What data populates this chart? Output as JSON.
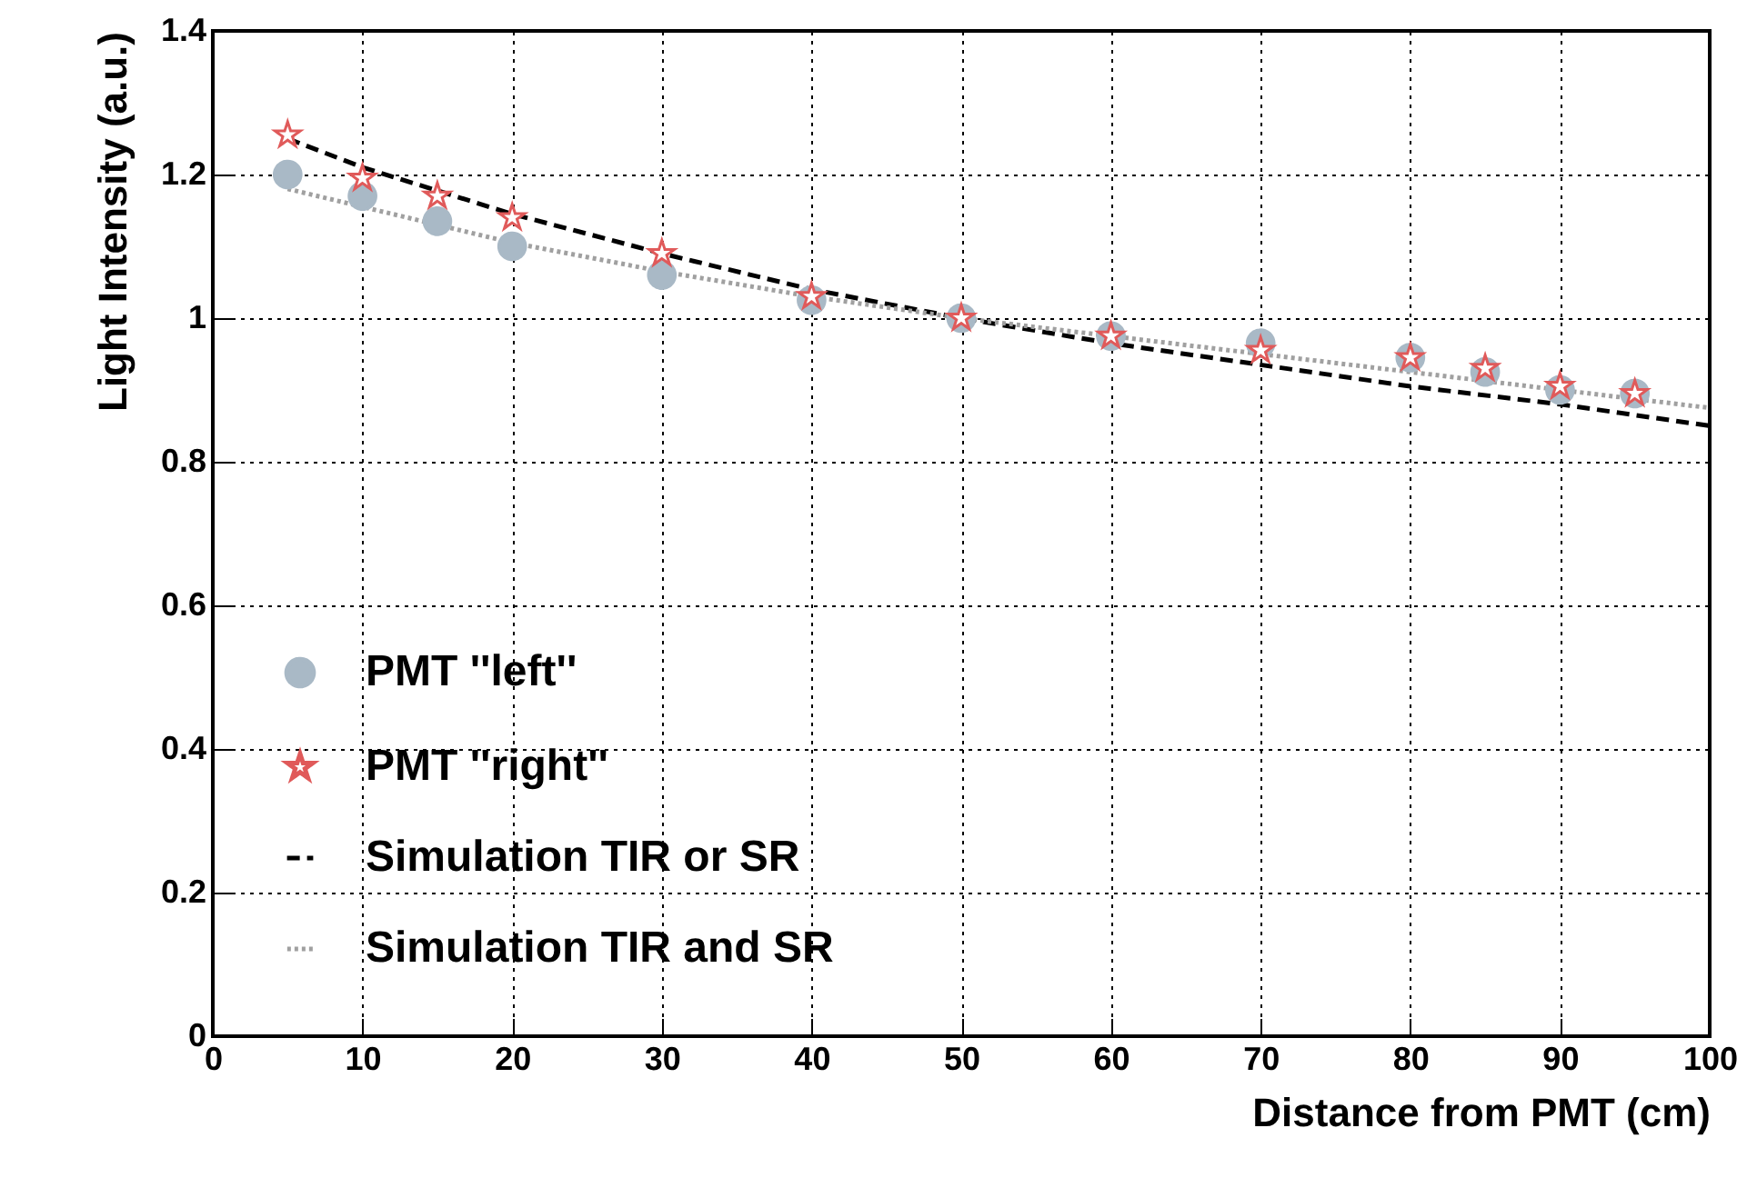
{
  "chart_data": {
    "type": "scatter",
    "xlabel": "Distance from PMT (cm)",
    "ylabel": "Light Intensity (a.u.)",
    "x": [
      5,
      10,
      15,
      20,
      30,
      40,
      50,
      60,
      70,
      80,
      85,
      90,
      95
    ],
    "series": [
      {
        "name": "PMT ''left''",
        "marker": "circle",
        "color": "#a9b9c6",
        "values": [
          1.2,
          1.17,
          1.135,
          1.1,
          1.06,
          1.025,
          1.0,
          0.975,
          0.965,
          0.945,
          0.925,
          0.9,
          0.895
        ]
      },
      {
        "name": "PMT ''right''",
        "marker": "star",
        "color": "#e05a5a",
        "values": [
          1.255,
          1.195,
          1.17,
          1.14,
          1.09,
          1.03,
          1.0,
          0.975,
          0.955,
          0.945,
          0.93,
          0.905,
          0.895
        ]
      },
      {
        "name": "Simulation TIR or SR",
        "type": "line",
        "marker": "none",
        "line_style": "dashed",
        "color": "#000000",
        "x": [
          5,
          10,
          20,
          30,
          40,
          50,
          60,
          70,
          80,
          90,
          100
        ],
        "values": [
          1.25,
          1.21,
          1.145,
          1.09,
          1.04,
          1.0,
          0.965,
          0.935,
          0.905,
          0.88,
          0.85
        ]
      },
      {
        "name": "Simulation TIR and SR",
        "type": "line",
        "marker": "none",
        "line_style": "dotted",
        "color": "#a0a0a0",
        "x": [
          5,
          10,
          20,
          30,
          40,
          50,
          60,
          70,
          80,
          90,
          100
        ],
        "values": [
          1.18,
          1.155,
          1.105,
          1.065,
          1.03,
          1.0,
          0.975,
          0.95,
          0.925,
          0.9,
          0.875
        ]
      }
    ],
    "xlim": [
      0,
      100
    ],
    "xticks": [
      0,
      10,
      20,
      30,
      40,
      50,
      60,
      70,
      80,
      90,
      100
    ],
    "ylim": [
      0,
      1.4
    ],
    "yticks": [
      0,
      0.2,
      0.4,
      0.6,
      0.8,
      1,
      1.2,
      1.4
    ],
    "grid": true,
    "legend": "bottom left"
  }
}
